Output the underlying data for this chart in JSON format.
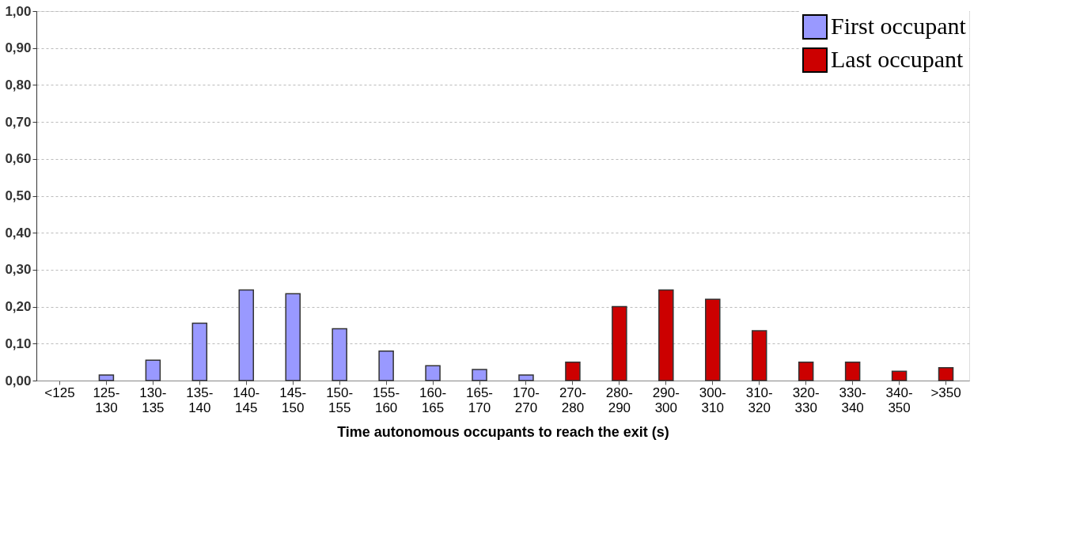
{
  "chart_data": {
    "type": "bar",
    "xlabel": "Time autonomous  occupants to reach the exit (s)",
    "categories": [
      "<125",
      "125-130",
      "130-135",
      "135-140",
      "140-145",
      "145-150",
      "150-155",
      "155-160",
      "160-165",
      "165-170",
      "170-270",
      "270-280",
      "280-290",
      "290-300",
      "300-310",
      "310-320",
      "320-330",
      "330-340",
      "340-350",
      ">350"
    ],
    "series": [
      {
        "name": "First occupant",
        "color": "#9999ff",
        "values": [
          null,
          0.015,
          0.055,
          0.155,
          0.245,
          0.235,
          0.14,
          0.08,
          0.04,
          0.03,
          0.015,
          null,
          null,
          null,
          null,
          null,
          null,
          null,
          null,
          null
        ]
      },
      {
        "name": "Last occupant",
        "color": "#cc0000",
        "values": [
          null,
          null,
          null,
          null,
          null,
          null,
          null,
          null,
          null,
          null,
          null,
          0.05,
          0.2,
          0.245,
          0.22,
          0.135,
          0.05,
          0.05,
          0.025,
          0.035
        ]
      }
    ],
    "ylim": [
      0,
      1
    ],
    "yticks": [
      {
        "value": 0,
        "label": "0,00"
      },
      {
        "value": 0.1,
        "label": "0,10"
      },
      {
        "value": 0.2,
        "label": "0,20"
      },
      {
        "value": 0.3,
        "label": "0,30"
      },
      {
        "value": 0.4,
        "label": "0,40"
      },
      {
        "value": 0.5,
        "label": "0,50"
      },
      {
        "value": 0.6,
        "label": "0,60"
      },
      {
        "value": 0.7,
        "label": "0,70"
      },
      {
        "value": 0.8,
        "label": "0,80"
      },
      {
        "value": 0.9,
        "label": "0,90"
      },
      {
        "value": 1,
        "label": "1,00"
      }
    ],
    "grid": "y",
    "legend": "top right"
  }
}
